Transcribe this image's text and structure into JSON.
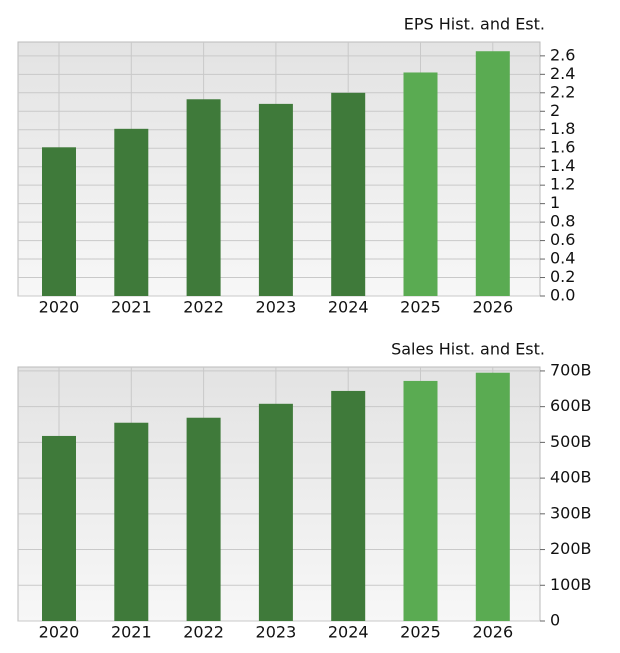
{
  "chart_data": [
    {
      "type": "bar",
      "title": "EPS Hist. and Est.",
      "categories": [
        "2020",
        "2021",
        "2022",
        "2023",
        "2024",
        "2025",
        "2026"
      ],
      "values": [
        1.61,
        1.81,
        2.13,
        2.08,
        2.2,
        2.42,
        2.65
      ],
      "colors": [
        "#3f7a3a",
        "#3f7a3a",
        "#3f7a3a",
        "#3f7a3a",
        "#3f7a3a",
        "#5aab52",
        "#5aab52"
      ],
      "ylim": [
        0,
        2.75
      ],
      "yticks": [
        {
          "value": 0,
          "label": "0.0"
        },
        0.2,
        0.4,
        0.6,
        0.8,
        1,
        1.2,
        1.4,
        1.6,
        1.8,
        2,
        2.2,
        2.4,
        2.6
      ],
      "grid": true
    },
    {
      "type": "bar",
      "title": "Sales Hist. and Est.",
      "categories": [
        "2020",
        "2021",
        "2022",
        "2023",
        "2024",
        "2025",
        "2026"
      ],
      "values": [
        518,
        555,
        569,
        608,
        644,
        672,
        695
      ],
      "colors": [
        "#3f7a3a",
        "#3f7a3a",
        "#3f7a3a",
        "#3f7a3a",
        "#3f7a3a",
        "#5aab52",
        "#5aab52"
      ],
      "ylim": [
        0,
        711
      ],
      "yticks": [
        0,
        {
          "value": 100,
          "label": "100B"
        },
        {
          "value": 200,
          "label": "200B"
        },
        {
          "value": 300,
          "label": "300B"
        },
        {
          "value": 400,
          "label": "400B"
        },
        {
          "value": 500,
          "label": "500B"
        },
        {
          "value": 600,
          "label": "600B"
        },
        {
          "value": 700,
          "label": "700B"
        }
      ],
      "grid": true
    }
  ]
}
